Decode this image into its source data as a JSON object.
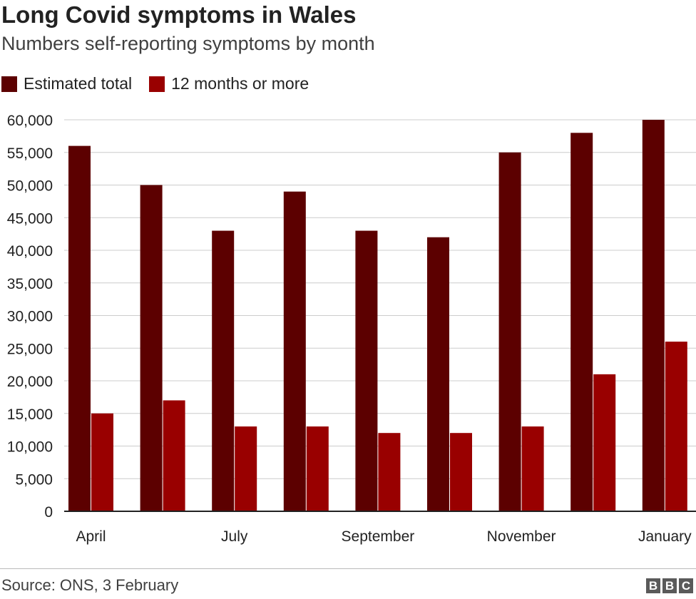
{
  "title": "Long Covid symptoms in Wales",
  "subtitle": "Numbers self-reporting symptoms by month",
  "source": "Source: ONS, 3 February",
  "logo": {
    "letters": [
      "B",
      "B",
      "C"
    ]
  },
  "colors": {
    "estimated_total": "#5c0000",
    "twelve_months": "#990000",
    "grid": "#cccccc",
    "axis": "#222222"
  },
  "chart_data": {
    "type": "bar",
    "categories": [
      "April",
      "",
      "July",
      "",
      "September",
      "",
      "November",
      "",
      "January"
    ],
    "series": [
      {
        "name": "Estimated total",
        "values": [
          56000,
          50000,
          43000,
          49000,
          43000,
          42000,
          55000,
          58000,
          60000
        ]
      },
      {
        "name": "12 months or more",
        "values": [
          15000,
          17000,
          13000,
          13000,
          12000,
          12000,
          13000,
          21000,
          26000
        ]
      }
    ],
    "ylim": [
      0,
      60000
    ],
    "yticks": [
      0,
      5000,
      10000,
      15000,
      20000,
      25000,
      30000,
      35000,
      40000,
      45000,
      50000,
      55000,
      60000
    ],
    "ytick_labels": [
      "0",
      "5,000",
      "10,000",
      "15,000",
      "20,000",
      "25,000",
      "30,000",
      "35,000",
      "40,000",
      "45,000",
      "50,000",
      "55,000",
      "60,000"
    ],
    "grid": true,
    "legend": "top-left"
  }
}
